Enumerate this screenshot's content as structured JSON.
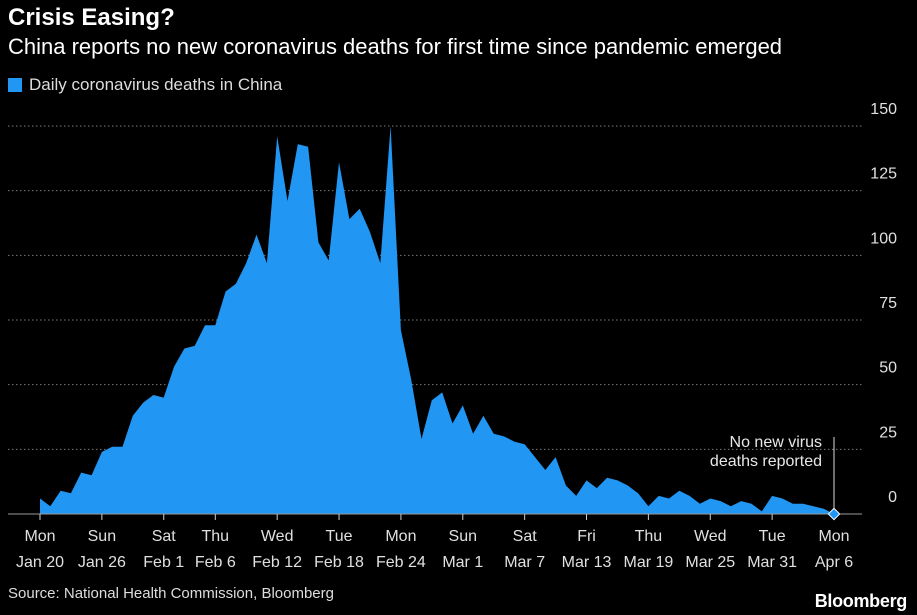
{
  "header": {
    "title": "Crisis Easing?",
    "subtitle": "China reports no new coronavirus deaths for first time since pandemic emerged"
  },
  "footer": {
    "source": "Source: National Health Commission, Bloomberg",
    "brand": "Bloomberg"
  },
  "colors": {
    "background": "#000000",
    "series": "#2196f3",
    "gridline": "#7a7a7a",
    "text": "#ffffff"
  },
  "chart_data": {
    "type": "area",
    "title": "Crisis Easing?",
    "subtitle": "China reports no new coronavirus deaths for first time since pandemic emerged",
    "xlabel": "",
    "ylabel": "",
    "xlim": [
      "2020-01-20",
      "2020-04-06"
    ],
    "ylim": [
      0,
      150
    ],
    "y_axis_side": "right",
    "y_ticks": [
      0,
      25,
      50,
      75,
      100,
      125,
      150
    ],
    "grid": "horizontal dotted",
    "legend_position": "top-left",
    "x_ticks": [
      {
        "date": "2020-01-20",
        "day": "Mon",
        "label": "Jan 20"
      },
      {
        "date": "2020-01-26",
        "day": "Sun",
        "label": "Jan 26"
      },
      {
        "date": "2020-02-01",
        "day": "Sat",
        "label": "Feb 1"
      },
      {
        "date": "2020-02-06",
        "day": "Thu",
        "label": "Feb 6"
      },
      {
        "date": "2020-02-12",
        "day": "Wed",
        "label": "Feb 12"
      },
      {
        "date": "2020-02-18",
        "day": "Tue",
        "label": "Feb 18"
      },
      {
        "date": "2020-02-24",
        "day": "Mon",
        "label": "Feb 24"
      },
      {
        "date": "2020-03-01",
        "day": "Sun",
        "label": "Mar 1"
      },
      {
        "date": "2020-03-07",
        "day": "Sat",
        "label": "Mar 7"
      },
      {
        "date": "2020-03-13",
        "day": "Fri",
        "label": "Mar 13"
      },
      {
        "date": "2020-03-19",
        "day": "Thu",
        "label": "Mar 19"
      },
      {
        "date": "2020-03-25",
        "day": "Wed",
        "label": "Mar 25"
      },
      {
        "date": "2020-03-31",
        "day": "Tue",
        "label": "Mar 31"
      },
      {
        "date": "2020-04-06",
        "day": "Mon",
        "label": "Apr 6"
      }
    ],
    "series": [
      {
        "name": "Daily coronavirus deaths in China",
        "x": [
          "2020-01-20",
          "2020-01-21",
          "2020-01-22",
          "2020-01-23",
          "2020-01-24",
          "2020-01-25",
          "2020-01-26",
          "2020-01-27",
          "2020-01-28",
          "2020-01-29",
          "2020-01-30",
          "2020-01-31",
          "2020-02-01",
          "2020-02-02",
          "2020-02-03",
          "2020-02-04",
          "2020-02-05",
          "2020-02-06",
          "2020-02-07",
          "2020-02-08",
          "2020-02-09",
          "2020-02-10",
          "2020-02-11",
          "2020-02-12",
          "2020-02-13",
          "2020-02-14",
          "2020-02-15",
          "2020-02-16",
          "2020-02-17",
          "2020-02-18",
          "2020-02-19",
          "2020-02-20",
          "2020-02-21",
          "2020-02-22",
          "2020-02-23",
          "2020-02-24",
          "2020-02-25",
          "2020-02-26",
          "2020-02-27",
          "2020-02-28",
          "2020-02-29",
          "2020-03-01",
          "2020-03-02",
          "2020-03-03",
          "2020-03-04",
          "2020-03-05",
          "2020-03-06",
          "2020-03-07",
          "2020-03-08",
          "2020-03-09",
          "2020-03-10",
          "2020-03-11",
          "2020-03-12",
          "2020-03-13",
          "2020-03-14",
          "2020-03-15",
          "2020-03-16",
          "2020-03-17",
          "2020-03-18",
          "2020-03-19",
          "2020-03-20",
          "2020-03-21",
          "2020-03-22",
          "2020-03-23",
          "2020-03-24",
          "2020-03-25",
          "2020-03-26",
          "2020-03-27",
          "2020-03-28",
          "2020-03-29",
          "2020-03-30",
          "2020-03-31",
          "2020-04-01",
          "2020-04-02",
          "2020-04-03",
          "2020-04-04",
          "2020-04-05",
          "2020-04-06"
        ],
        "values": [
          6,
          3,
          9,
          8,
          16,
          15,
          24,
          26,
          26,
          38,
          43,
          46,
          45,
          57,
          64,
          65,
          73,
          73,
          86,
          89,
          97,
          108,
          97,
          146,
          121,
          143,
          142,
          105,
          98,
          136,
          114,
          118,
          109,
          97,
          150,
          71,
          52,
          29,
          44,
          47,
          35,
          42,
          31,
          38,
          31,
          30,
          28,
          27,
          22,
          17,
          22,
          11,
          7,
          13,
          10,
          14,
          13,
          11,
          8,
          3,
          7,
          6,
          9,
          7,
          4,
          6,
          5,
          3,
          5,
          4,
          1,
          7,
          6,
          4,
          4,
          3,
          2,
          0
        ]
      }
    ],
    "annotation": {
      "date": "2020-04-06",
      "value": 0,
      "text_lines": [
        "No new virus",
        "deaths reported"
      ]
    }
  }
}
